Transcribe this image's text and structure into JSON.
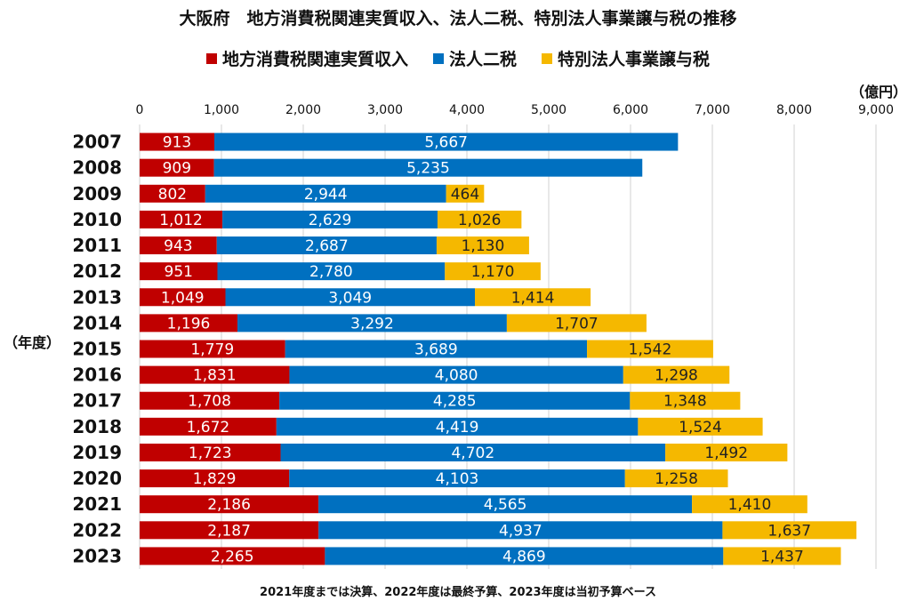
{
  "title": "大阪府　地方消費税関連実質収入、法人二税、特別法人事業譲与税の推移",
  "legend": [
    {
      "label": "地方消費税関連実質収入",
      "color": "#C00000"
    },
    {
      "label": "法人二税",
      "color": "#0070C0"
    },
    {
      "label": "特別法人事業譲与税",
      "color": "#F5B800"
    }
  ],
  "unit": "（億円）",
  "y_category_label": "（年度）",
  "note": "2021年度までは決算、2022年度は最終予算、2023年度は当初予算ベース",
  "chart_data": {
    "type": "bar",
    "orientation": "horizontal",
    "stacked": true,
    "categories": [
      "2007",
      "2008",
      "2009",
      "2010",
      "2011",
      "2012",
      "2013",
      "2014",
      "2015",
      "2016",
      "2017",
      "2018",
      "2019",
      "2020",
      "2021",
      "2022",
      "2023"
    ],
    "series": [
      {
        "name": "地方消費税関連実質収入",
        "color": "#C00000",
        "values": [
          913,
          909,
          802,
          1012,
          943,
          951,
          1049,
          1196,
          1779,
          1831,
          1708,
          1672,
          1723,
          1829,
          2186,
          2187,
          2265
        ],
        "labels": [
          "913",
          "909",
          "802",
          "1,012",
          "943",
          "951",
          "1,049",
          "1,196",
          "1,779",
          "1,831",
          "1,708",
          "1,672",
          "1,723",
          "1,829",
          "2,186",
          "2,187",
          "2,265"
        ]
      },
      {
        "name": "法人二税",
        "color": "#0070C0",
        "values": [
          5667,
          5235,
          2944,
          2629,
          2687,
          2780,
          3049,
          3292,
          3689,
          4080,
          4285,
          4419,
          4702,
          4103,
          4565,
          4937,
          4869
        ],
        "labels": [
          "5,667",
          "5,235",
          "2,944",
          "2,629",
          "2,687",
          "2,780",
          "3,049",
          "3,292",
          "3,689",
          "4,080",
          "4,285",
          "4,419",
          "4,702",
          "4,103",
          "4,565",
          "4,937",
          "4,869"
        ]
      },
      {
        "name": "特別法人事業譲与税",
        "color": "#F5B800",
        "values": [
          null,
          null,
          464,
          1026,
          1130,
          1170,
          1414,
          1707,
          1542,
          1298,
          1348,
          1524,
          1492,
          1258,
          1410,
          1637,
          1437
        ],
        "labels": [
          null,
          null,
          "464",
          "1,026",
          "1,130",
          "1,170",
          "1,414",
          "1,707",
          "1,542",
          "1,298",
          "1,348",
          "1,524",
          "1,492",
          "1,258",
          "1,410",
          "1,637",
          "1,437"
        ]
      }
    ],
    "xlim": [
      0,
      9000
    ],
    "xticks": [
      0,
      1000,
      2000,
      3000,
      4000,
      5000,
      6000,
      7000,
      8000,
      9000
    ],
    "xtick_labels": [
      "0",
      "1,000",
      "2,000",
      "3,000",
      "4,000",
      "5,000",
      "6,000",
      "7,000",
      "8,000",
      "9,000"
    ],
    "grid": true,
    "axis_position": "top",
    "legend_position": "top"
  }
}
